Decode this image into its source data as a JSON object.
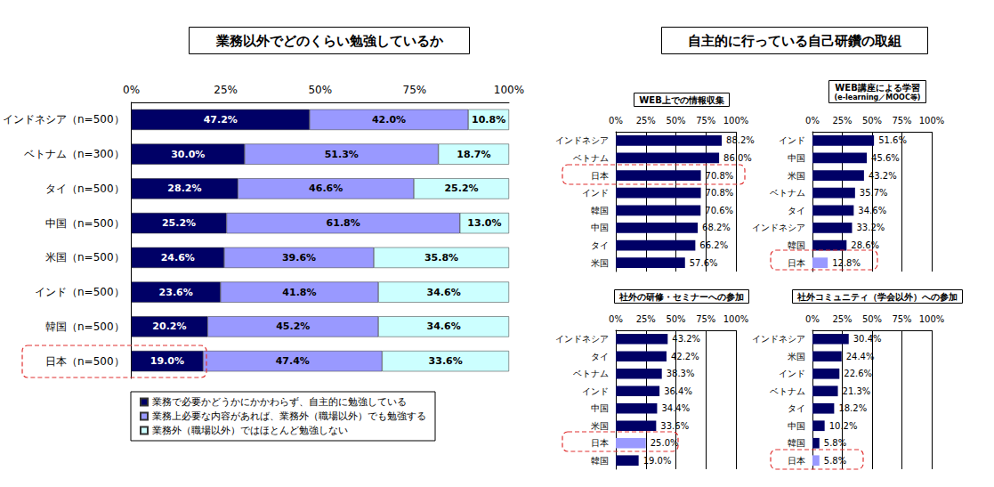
{
  "section_title": "自主的に行っている自己研鑽の取組",
  "chart_data": [
    {
      "type": "bar",
      "title": "業務以外でどのくらい勉強しているか",
      "orientation": "horizontal",
      "stacked": true,
      "data_labels": true,
      "grid": false,
      "legend": "bottom",
      "categories": [
        "インドネシア（n=500）",
        "ベトナム（n=300）",
        "タイ（n=500）",
        "中国（n=500）",
        "米国（n=500）",
        "インド（n=500）",
        "韓国（n=500）",
        "日本（n=500）"
      ],
      "series": [
        {
          "name": "業務で必要かどうかにかかわらず、自主的に勉強している",
          "color": "#000066",
          "values": [
            47.2,
            30.0,
            28.2,
            25.2,
            24.6,
            23.6,
            20.2,
            19.0
          ],
          "value_labels": [
            "47.2%",
            "30.0%",
            "28.2%",
            "25.2%",
            "24.6%",
            "23.6%",
            "20.2%",
            "19.0%"
          ]
        },
        {
          "name": "業務上必要な内容があれば、業務外（職場以外）でも勉強する",
          "color": "#9999ff",
          "values": [
            42.0,
            51.3,
            46.6,
            61.8,
            39.6,
            41.8,
            45.2,
            47.4
          ],
          "value_labels": [
            "42.0%",
            "51.3%",
            "46.6%",
            "61.8%",
            "39.6%",
            "41.8%",
            "45.2%",
            "47.4%"
          ]
        },
        {
          "name": "業務外（職場以外）ではほとんど勉強しない",
          "color": "#ccffff",
          "values": [
            10.8,
            18.7,
            25.2,
            13.0,
            35.8,
            34.6,
            34.6,
            33.6
          ],
          "value_labels": [
            "10.8%",
            "18.7%",
            "25.2%",
            "13.0%",
            "35.8%",
            "34.6%",
            "34.6%",
            "33.6%"
          ]
        }
      ],
      "xlim": [
        0,
        100
      ],
      "xticks": [
        {
          "value": 0,
          "label": "0%"
        },
        {
          "value": 25,
          "label": "25%"
        },
        {
          "value": 50,
          "label": "50%"
        },
        {
          "value": 75,
          "label": "75%"
        },
        {
          "value": 100,
          "label": "100%"
        }
      ]
    },
    {
      "type": "bar",
      "title": "WEB上での情報収集",
      "orientation": "horizontal",
      "data_labels": true,
      "grid": true,
      "categories": [
        "インドネシア",
        "ベトナム",
        "日本",
        "インド",
        "韓国",
        "中国",
        "タイ",
        "米国"
      ],
      "values": [
        88.2,
        86.0,
        70.8,
        70.8,
        70.6,
        68.2,
        66.2,
        57.6
      ],
      "value_labels": [
        "88.2%",
        "86.0%",
        "70.8%",
        "70.8%",
        "70.6%",
        "68.2%",
        "66.2%",
        "57.6%"
      ],
      "colors": [
        "#000066",
        "#000066",
        "#000066",
        "#000066",
        "#000066",
        "#000066",
        "#000066",
        "#000066"
      ],
      "xlim": [
        0,
        100
      ],
      "xticks": [
        {
          "value": 0,
          "label": "0%"
        },
        {
          "value": 25,
          "label": "25%"
        },
        {
          "value": 50,
          "label": "50%"
        },
        {
          "value": 75,
          "label": "75%"
        },
        {
          "value": 100,
          "label": "100%"
        }
      ]
    },
    {
      "type": "bar",
      "title": "WEB講座による学習",
      "subtitle": "(e-learning／MOOC等)",
      "orientation": "horizontal",
      "data_labels": true,
      "grid": true,
      "categories": [
        "インド",
        "中国",
        "米国",
        "ベトナム",
        "タイ",
        "インドネシア",
        "韓国",
        "日本"
      ],
      "values": [
        51.6,
        45.6,
        43.2,
        35.7,
        34.6,
        33.2,
        28.6,
        12.8
      ],
      "value_labels": [
        "51.6%",
        "45.6%",
        "43.2%",
        "35.7%",
        "34.6%",
        "33.2%",
        "28.6%",
        "12.8%"
      ],
      "colors": [
        "#000066",
        "#000066",
        "#000066",
        "#000066",
        "#000066",
        "#000066",
        "#000066",
        "#9999ff"
      ],
      "xlim": [
        0,
        100
      ],
      "xticks": [
        {
          "value": 0,
          "label": "0%"
        },
        {
          "value": 25,
          "label": "25%"
        },
        {
          "value": 50,
          "label": "50%"
        },
        {
          "value": 75,
          "label": "75%"
        },
        {
          "value": 100,
          "label": "100%"
        }
      ]
    },
    {
      "type": "bar",
      "title": "社外の研修・セミナーへの参加",
      "orientation": "horizontal",
      "data_labels": true,
      "grid": true,
      "categories": [
        "インドネシア",
        "タイ",
        "ベトナム",
        "インド",
        "中国",
        "米国",
        "日本",
        "韓国"
      ],
      "values": [
        43.2,
        42.2,
        38.3,
        36.4,
        34.4,
        33.6,
        25.0,
        19.0
      ],
      "value_labels": [
        "43.2%",
        "42.2%",
        "38.3%",
        "36.4%",
        "34.4%",
        "33.6%",
        "25.0%",
        "19.0%"
      ],
      "colors": [
        "#000066",
        "#000066",
        "#000066",
        "#000066",
        "#000066",
        "#000066",
        "#9999ff",
        "#000066"
      ],
      "xlim": [
        0,
        100
      ],
      "xticks": [
        {
          "value": 0,
          "label": "0%"
        },
        {
          "value": 25,
          "label": "25%"
        },
        {
          "value": 50,
          "label": "50%"
        },
        {
          "value": 75,
          "label": "75%"
        },
        {
          "value": 100,
          "label": "100%"
        }
      ]
    },
    {
      "type": "bar",
      "title": "社外コミュニティ（学会以外）への参加",
      "orientation": "horizontal",
      "data_labels": true,
      "grid": true,
      "categories": [
        "インドネシア",
        "米国",
        "インド",
        "ベトナム",
        "タイ",
        "中国",
        "韓国",
        "日本"
      ],
      "values": [
        30.4,
        24.4,
        22.6,
        21.3,
        18.2,
        10.2,
        5.8,
        5.8
      ],
      "value_labels": [
        "30.4%",
        "24.4%",
        "22.6%",
        "21.3%",
        "18.2%",
        "10.2%",
        "5.8%",
        "5.8%"
      ],
      "colors": [
        "#000066",
        "#000066",
        "#000066",
        "#000066",
        "#000066",
        "#000066",
        "#000066",
        "#9999ff"
      ],
      "xlim": [
        0,
        100
      ],
      "xticks": [
        {
          "value": 0,
          "label": "0%"
        },
        {
          "value": 25,
          "label": "25%"
        },
        {
          "value": 50,
          "label": "50%"
        },
        {
          "value": 75,
          "label": "75%"
        },
        {
          "value": 100,
          "label": "100%"
        }
      ]
    }
  ]
}
